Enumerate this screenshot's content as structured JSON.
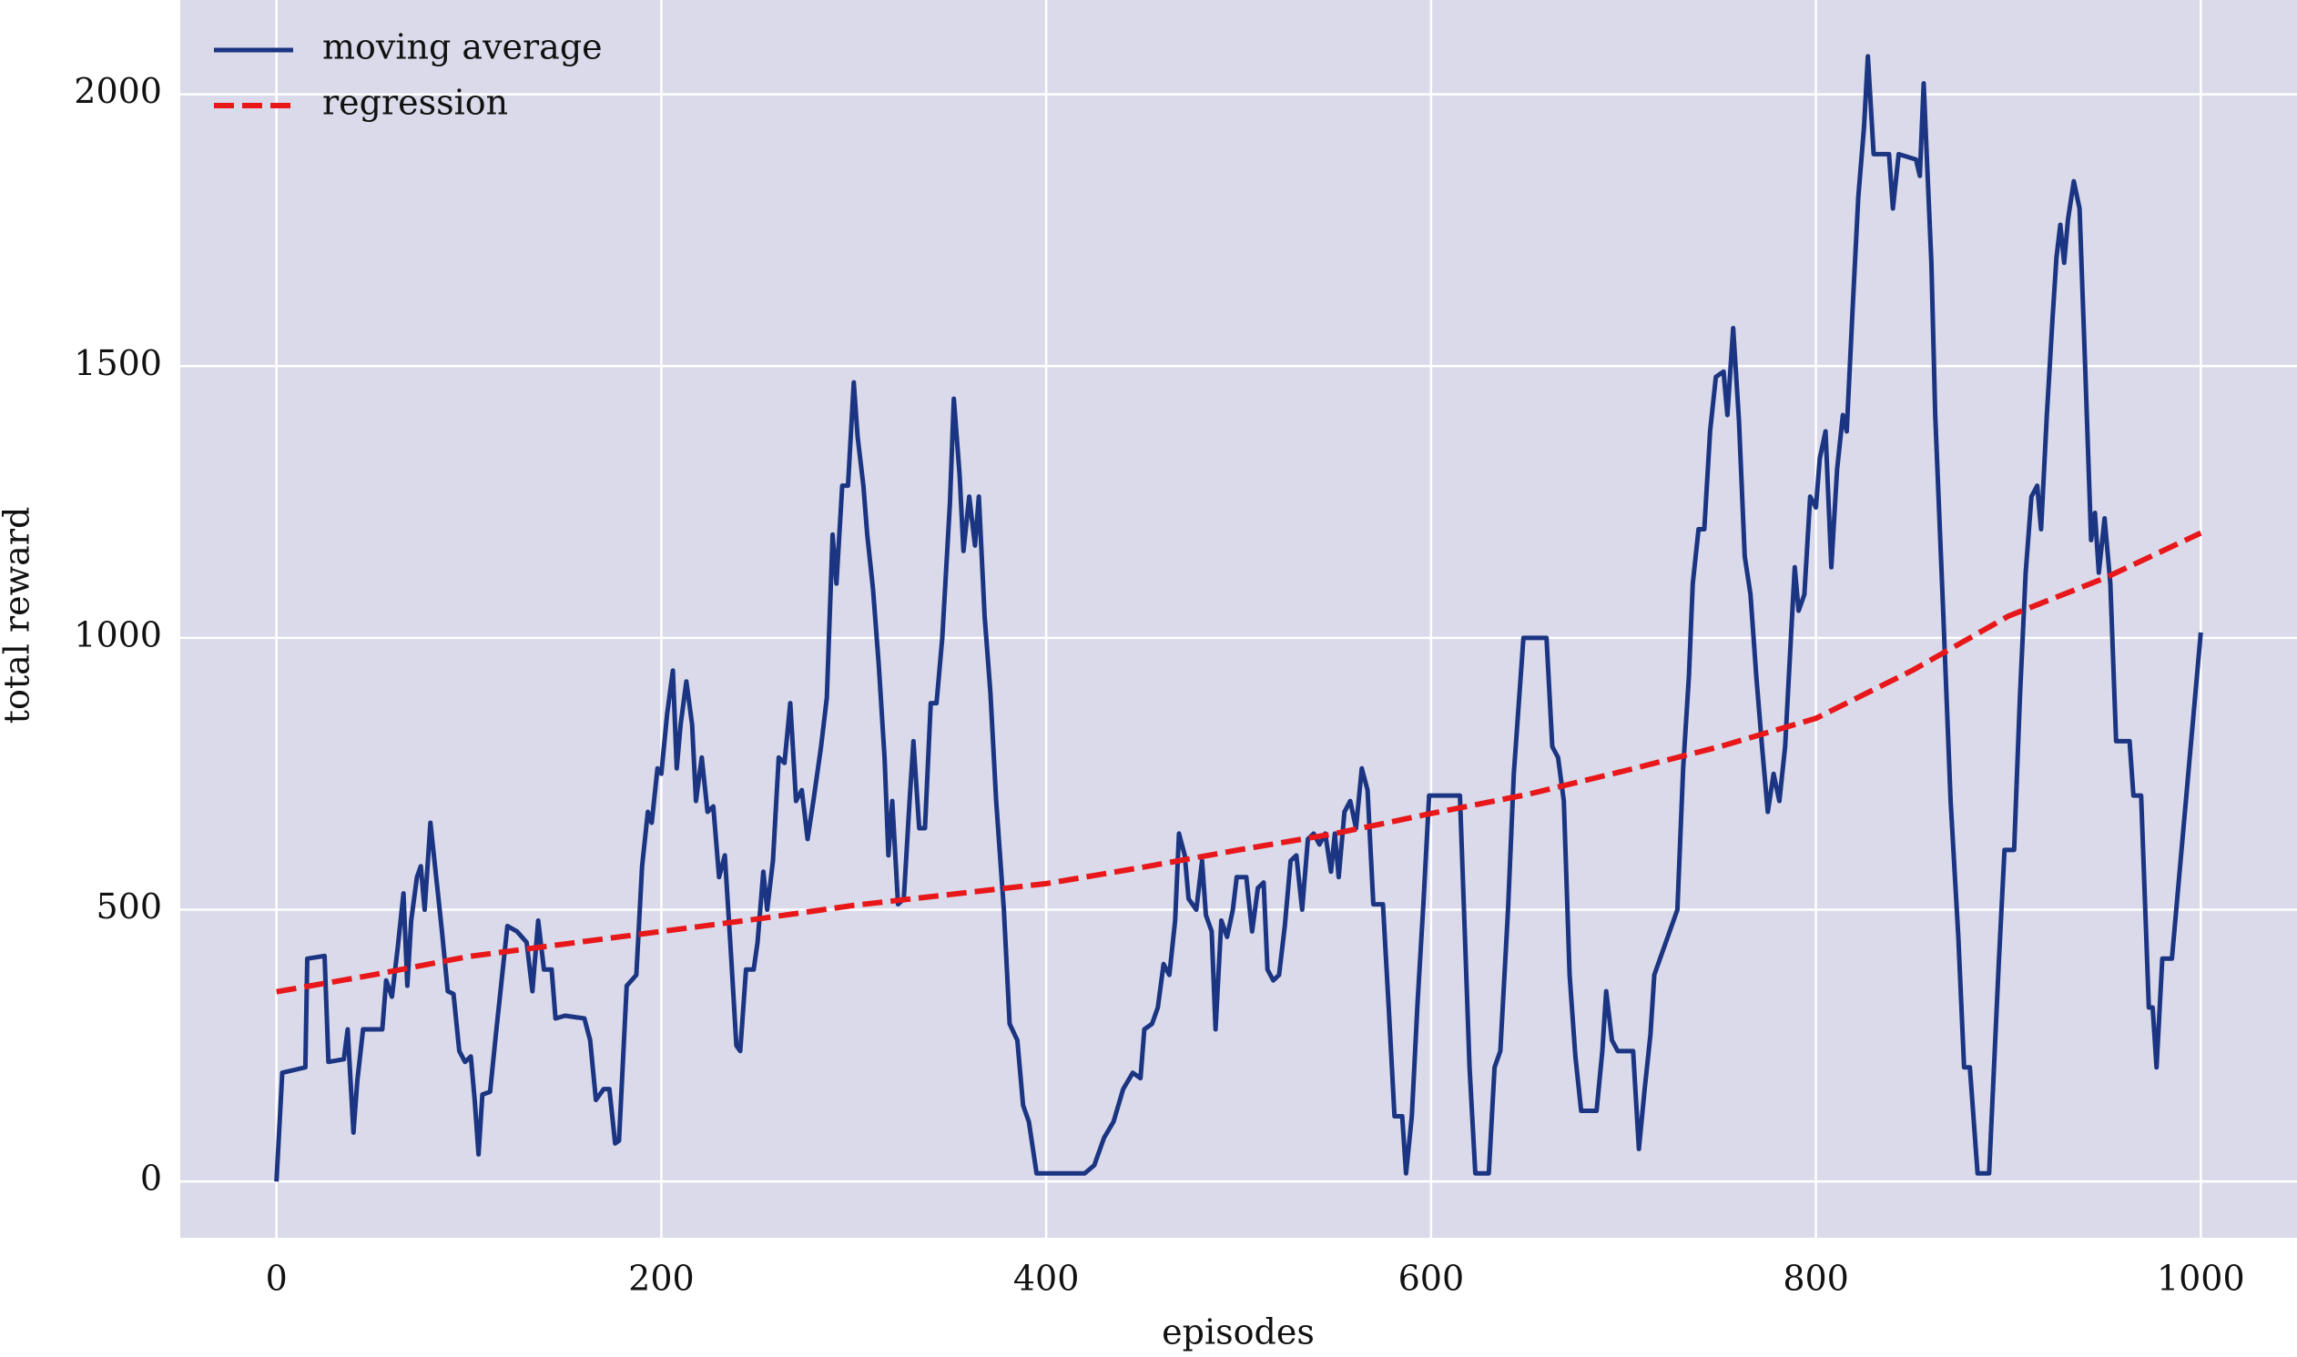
{
  "chart_data": {
    "type": "line",
    "x_label": "episodes",
    "y_label": "total reward",
    "xlim": [
      -50,
      1050
    ],
    "ylim": [
      -103.5,
      2173.5
    ],
    "xticks": [
      0,
      200,
      400,
      600,
      800,
      1000
    ],
    "yticks": [
      0,
      500,
      1000,
      1500,
      2000
    ],
    "grid": true,
    "legend": "upper left",
    "background": "#dadaea",
    "series": [
      {
        "name": "moving average",
        "color": "#1b3582",
        "dash": false,
        "x": [
          0,
          3,
          15,
          16,
          25,
          27,
          35,
          37,
          40,
          42,
          45,
          55,
          57,
          60,
          63,
          66,
          68,
          70,
          73,
          75,
          77,
          80,
          83,
          86,
          89,
          92,
          95,
          98,
          101,
          103,
          105,
          107,
          111,
          114,
          117,
          120,
          125,
          130,
          133,
          136,
          139,
          143,
          145,
          150,
          160,
          163,
          166,
          170,
          173,
          176,
          178,
          182,
          187,
          190,
          193,
          195,
          198,
          200,
          203,
          206,
          208,
          210,
          213,
          216,
          218,
          221,
          224,
          227,
          230,
          233,
          236,
          239,
          241,
          244,
          248,
          250,
          253,
          255,
          258,
          261,
          264,
          267,
          270,
          273,
          276,
          279,
          283,
          286,
          289,
          291,
          294,
          297,
          300,
          302,
          305,
          307,
          310,
          313,
          316,
          318,
          320,
          323,
          326,
          329,
          331,
          334,
          337,
          340,
          343,
          346,
          350,
          352,
          355,
          357,
          360,
          363,
          365,
          368,
          371,
          374,
          378,
          381,
          385,
          388,
          391,
          395,
          420,
          425,
          430,
          435,
          440,
          445,
          449,
          451,
          455,
          458,
          461,
          464,
          467,
          469,
          472,
          474,
          478,
          481,
          483,
          486,
          488,
          491,
          494,
          497,
          499,
          504,
          507,
          510,
          513,
          515,
          518,
          521,
          524,
          527,
          530,
          533,
          536,
          539,
          542,
          545,
          548,
          550,
          552,
          555,
          558,
          561,
          564,
          567,
          570,
          575,
          578,
          581,
          585,
          587,
          590,
          593,
          596,
          599,
          615,
          620,
          623,
          630,
          633,
          636,
          640,
          643,
          646,
          648,
          660,
          663,
          666,
          669,
          672,
          675,
          678,
          686,
          689,
          691,
          694,
          697,
          705,
          708,
          711,
          714,
          716,
          720,
          724,
          728,
          731,
          734,
          736,
          739,
          742,
          745,
          748,
          752,
          754,
          757,
          760,
          763,
          766,
          769,
          772,
          775,
          778,
          781,
          784,
          787,
          789,
          791,
          794,
          797,
          800,
          802,
          805,
          808,
          811,
          814,
          816,
          819,
          822,
          825,
          827,
          830,
          838,
          840,
          843,
          852,
          854,
          856,
          860,
          862,
          866,
          870,
          874,
          877,
          880,
          884,
          890,
          895,
          898,
          903,
          906,
          909,
          912,
          915,
          917,
          920,
          923,
          925,
          927,
          929,
          931,
          934,
          937,
          940,
          943,
          945,
          947,
          950,
          953,
          956,
          963,
          965,
          969,
          973,
          975,
          977,
          980,
          985,
          1000
        ],
        "values": [
          0,
          200,
          210,
          410,
          415,
          220,
          225,
          280,
          90,
          185,
          280,
          280,
          370,
          340,
          430,
          530,
          360,
          480,
          560,
          580,
          500,
          660,
          560,
          460,
          350,
          345,
          240,
          220,
          230,
          150,
          50,
          160,
          165,
          270,
          370,
          470,
          460,
          440,
          350,
          480,
          390,
          390,
          300,
          305,
          300,
          260,
          150,
          170,
          170,
          70,
          75,
          360,
          380,
          580,
          680,
          660,
          760,
          750,
          860,
          940,
          760,
          840,
          920,
          840,
          700,
          780,
          680,
          690,
          560,
          600,
          430,
          250,
          240,
          390,
          390,
          440,
          570,
          500,
          590,
          780,
          770,
          880,
          700,
          720,
          630,
          700,
          800,
          890,
          1190,
          1100,
          1280,
          1280,
          1470,
          1370,
          1280,
          1190,
          1090,
          950,
          780,
          600,
          700,
          510,
          520,
          700,
          810,
          650,
          650,
          880,
          880,
          1000,
          1250,
          1440,
          1300,
          1160,
          1260,
          1170,
          1260,
          1040,
          900,
          700,
          500,
          290,
          260,
          140,
          110,
          15,
          15,
          30,
          80,
          110,
          170,
          200,
          190,
          280,
          290,
          320,
          400,
          380,
          480,
          640,
          600,
          520,
          500,
          590,
          490,
          460,
          280,
          480,
          450,
          500,
          560,
          560,
          460,
          540,
          550,
          390,
          370,
          380,
          470,
          590,
          600,
          500,
          630,
          640,
          620,
          640,
          570,
          640,
          560,
          680,
          700,
          650,
          760,
          720,
          510,
          510,
          320,
          120,
          120,
          15,
          120,
          330,
          510,
          710,
          710,
          210,
          15,
          15,
          210,
          240,
          500,
          750,
          900,
          1000,
          1000,
          800,
          780,
          700,
          380,
          230,
          130,
          130,
          240,
          350,
          260,
          240,
          240,
          60,
          170,
          270,
          380,
          420,
          460,
          500,
          760,
          930,
          1100,
          1200,
          1200,
          1380,
          1480,
          1490,
          1410,
          1570,
          1400,
          1150,
          1080,
          930,
          800,
          680,
          750,
          700,
          800,
          1000,
          1130,
          1050,
          1080,
          1260,
          1240,
          1330,
          1380,
          1130,
          1310,
          1410,
          1380,
          1600,
          1810,
          1940,
          2070,
          1890,
          1890,
          1790,
          1890,
          1880,
          1850,
          2020,
          1690,
          1410,
          1060,
          700,
          450,
          210,
          210,
          15,
          15,
          400,
          610,
          610,
          890,
          1120,
          1260,
          1280,
          1200,
          1410,
          1590,
          1700,
          1760,
          1690,
          1770,
          1840,
          1790,
          1490,
          1180,
          1230,
          1120,
          1220,
          1100,
          810,
          810,
          710,
          710,
          320,
          320,
          210,
          410,
          410,
          1010
        ]
      },
      {
        "name": "regression",
        "color": "#e8171a",
        "dash": true,
        "x": [
          0,
          50,
          100,
          150,
          200,
          250,
          300,
          350,
          400,
          450,
          500,
          550,
          600,
          650,
          700,
          750,
          800,
          850,
          900,
          950,
          1000
        ],
        "values": [
          349,
          380,
          414,
          437,
          460,
          483,
          508,
          528,
          548,
          578,
          610,
          640,
          677,
          712,
          755,
          800,
          852,
          940,
          1040,
          1110,
          1193
        ]
      }
    ]
  }
}
